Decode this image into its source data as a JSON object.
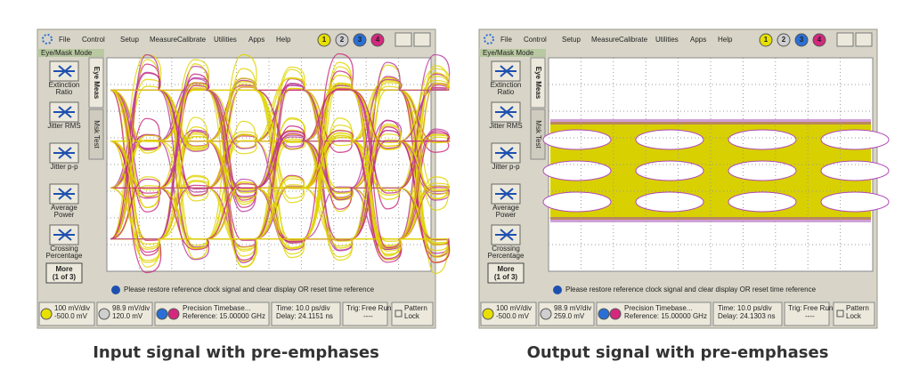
{
  "panels": [
    {
      "menu": [
        "File",
        "Control",
        "Setup",
        "Measure",
        "Calibrate",
        "Utilities",
        "Apps",
        "Help"
      ],
      "channels": [
        "1",
        "2",
        "3",
        "4"
      ],
      "mode": "Eye/Mask Mode",
      "tabs": [
        "Eye Meas",
        "Msk Test"
      ],
      "buttons": [
        [
          "Extinction",
          "Ratio"
        ],
        [
          "Jitter RMS"
        ],
        [
          "Jitter p-p"
        ],
        [
          "Average",
          "Power"
        ],
        [
          "Crossing",
          "Percentage"
        ]
      ],
      "more": [
        "More",
        "(1 of 3)"
      ],
      "message": "Please restore reference clock signal and clear display OR reset time reference",
      "readouts": {
        "ch1": [
          "100 mV/div",
          "-500.0 mV"
        ],
        "ch2": [
          "98.9 mV/div",
          "120.0 mV"
        ],
        "timebase": [
          "Precision Timebase...",
          "Reference: 15.00000 GHz"
        ],
        "time": [
          "Time: 10.0 ps/div",
          "Delay: 24.1151 ns"
        ],
        "trig": [
          "Trig:",
          "Free Run",
          "----"
        ],
        "pattern": [
          "Pattern",
          "Lock"
        ]
      },
      "caption": "Input signal with pre-emphases"
    },
    {
      "menu": [
        "File",
        "Control",
        "Setup",
        "Measure",
        "Calibrate",
        "Utilities",
        "Apps",
        "Help"
      ],
      "channels": [
        "1",
        "2",
        "3",
        "4"
      ],
      "mode": "Eye/Mask Mode",
      "tabs": [
        "Eye Meas",
        "Msk Test"
      ],
      "buttons": [
        [
          "Extinction",
          "Ratio"
        ],
        [
          "Jitter RMS"
        ],
        [
          "Jitter p-p"
        ],
        [
          "Average",
          "Power"
        ],
        [
          "Crossing",
          "Percentage"
        ]
      ],
      "more": [
        "More",
        "(1 of 3)"
      ],
      "message": "Please restore reference clock signal and clear display OR reset time reference",
      "readouts": {
        "ch1": [
          "100 mV/div",
          "-500.0 mV"
        ],
        "ch2": [
          "98.9 mV/div",
          "259.0 mV"
        ],
        "timebase": [
          "Precision Timebase...",
          "Reference: 15.00000 GHz"
        ],
        "time": [
          "Time: 10.0 ps/div",
          "Delay: 24.1303 ns"
        ],
        "trig": [
          "Trig:",
          "Free Run",
          "----"
        ],
        "pattern": [
          "Pattern",
          "Lock"
        ]
      },
      "caption": "Output signal with pre-emphases"
    }
  ]
}
